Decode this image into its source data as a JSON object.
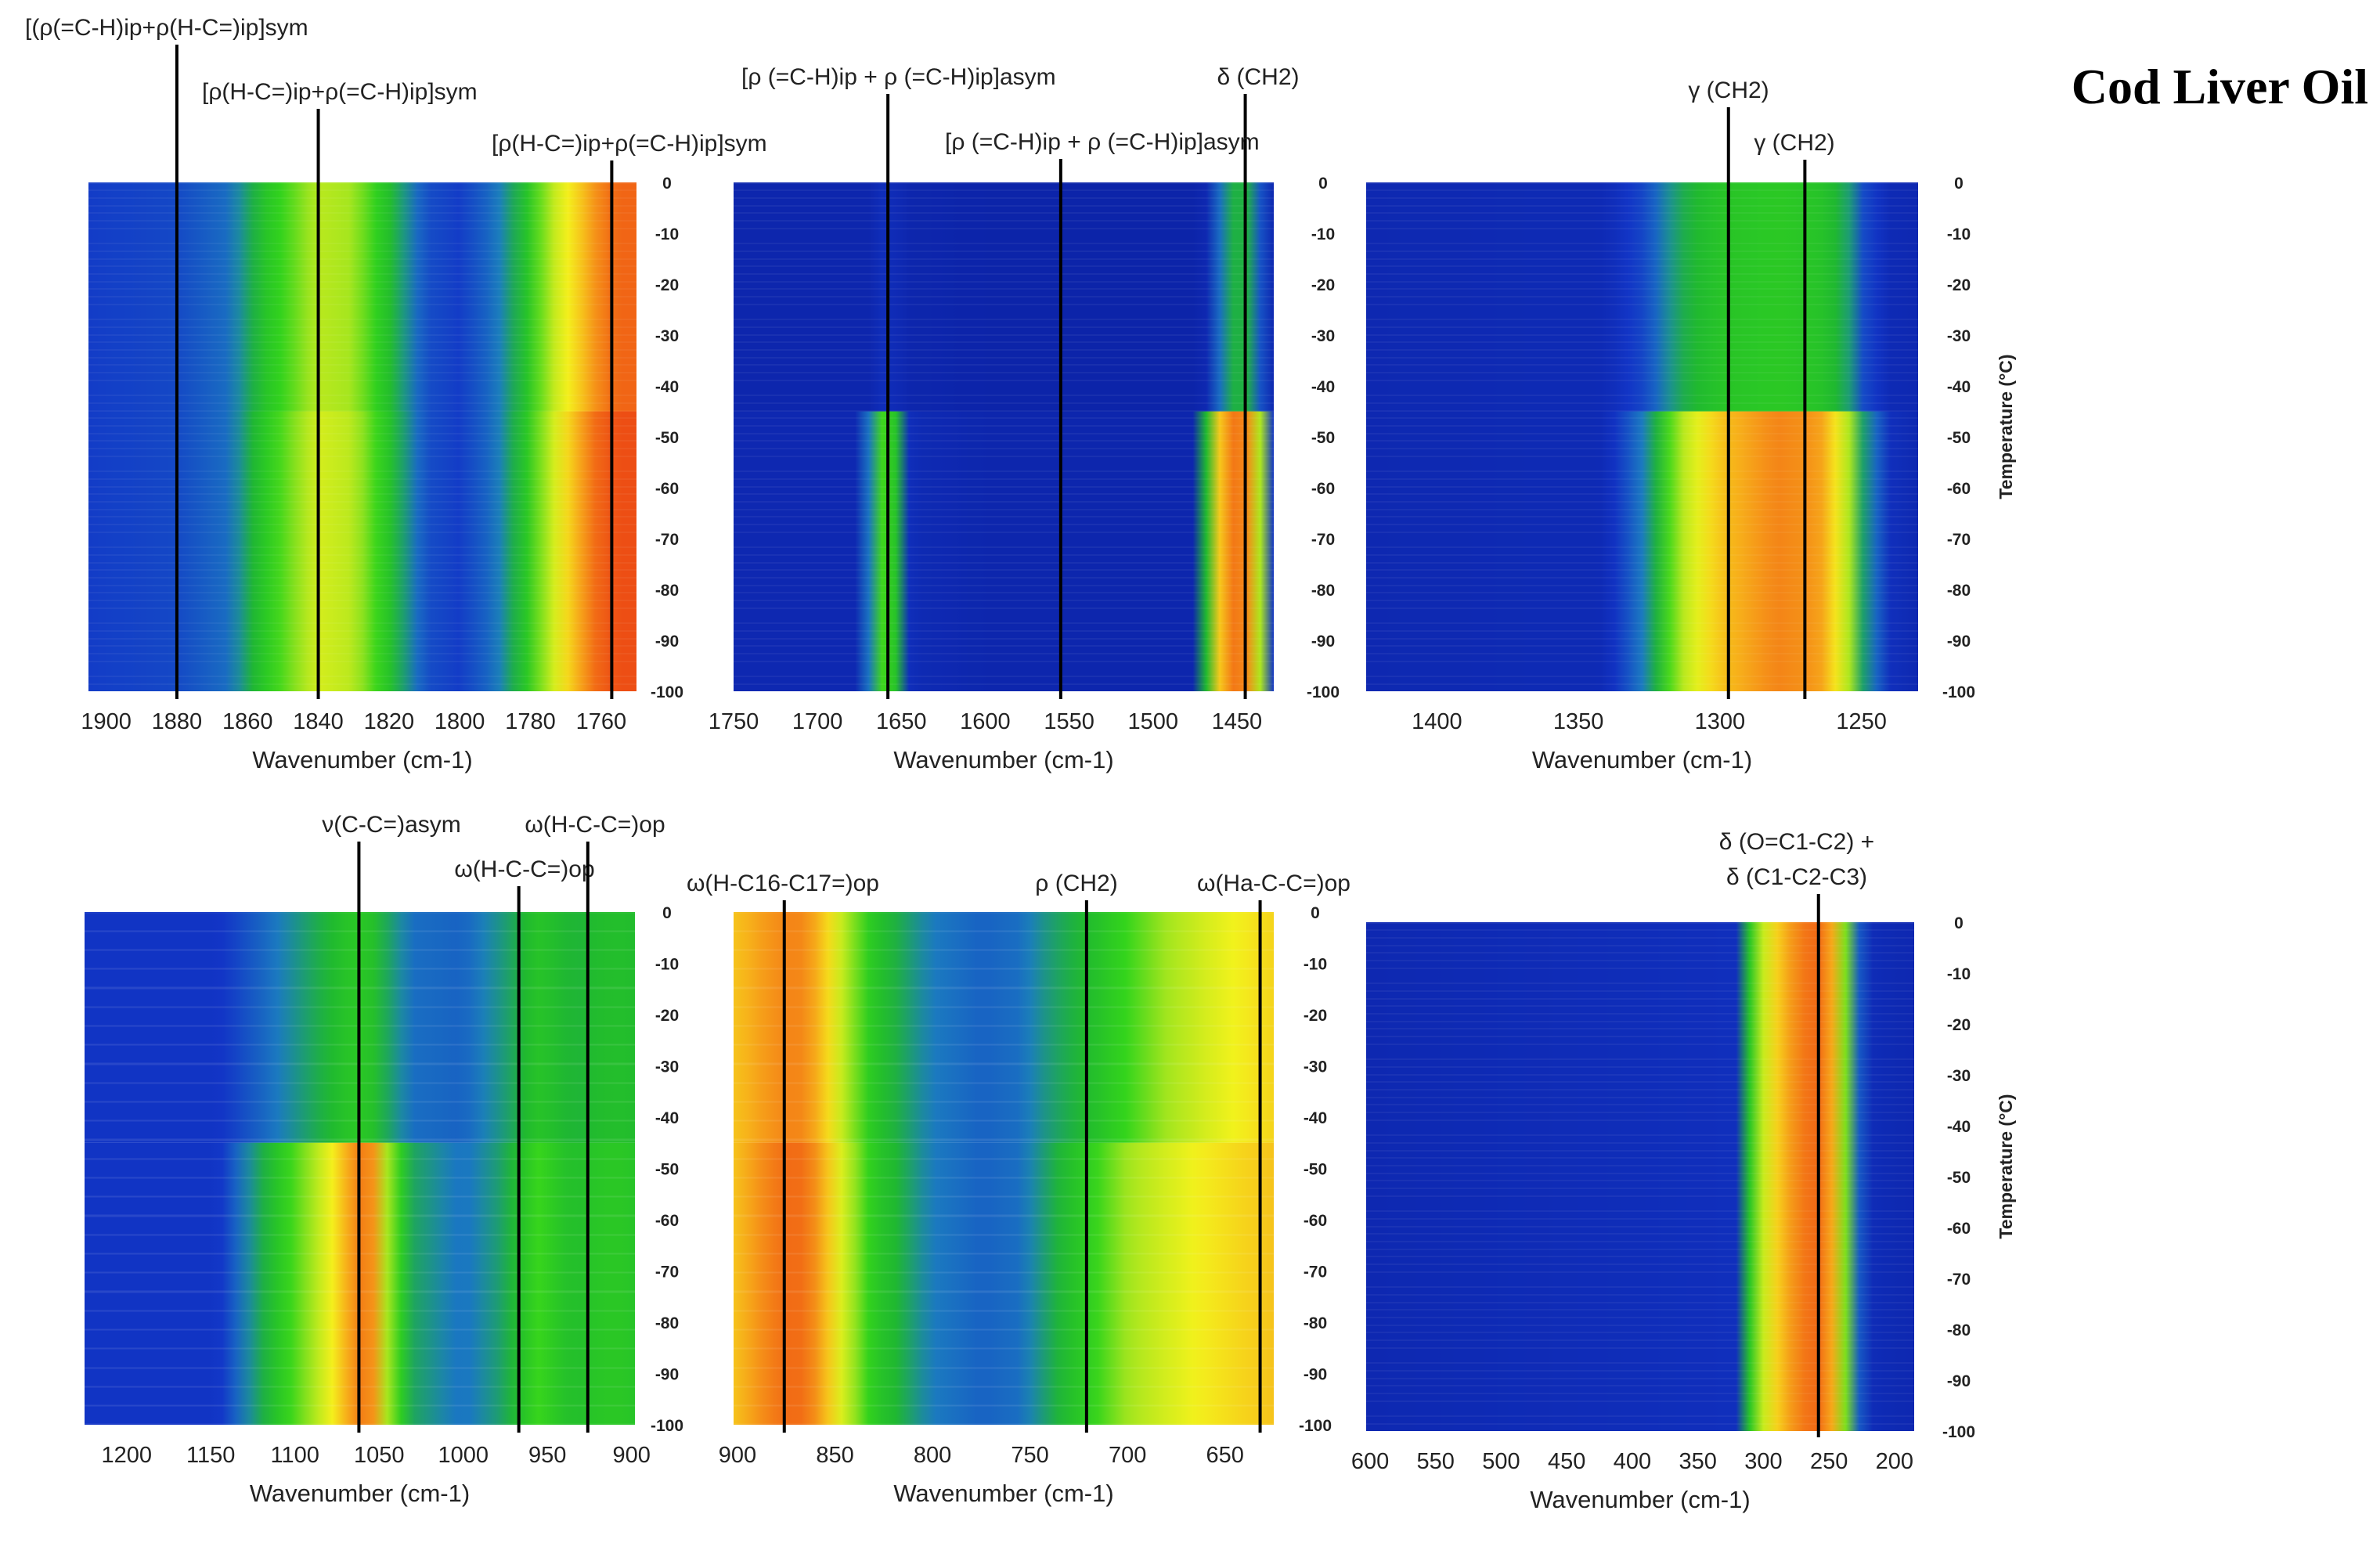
{
  "chart_data": {
    "title": "Cod Liver Oil",
    "type": "heatmap",
    "colormap": [
      "#0a1d9e",
      "#1236c8",
      "#1b7cc0",
      "#1fb830",
      "#33d41c",
      "#a8e61e",
      "#f4f21c",
      "#f7b31a",
      "#f26a15",
      "#e93714"
    ],
    "panels": [
      {
        "id": "p1",
        "xlabel": "Wavenumber (cm-1)",
        "xlim": [
          1905,
          1750
        ],
        "xticks": [
          "1900",
          "1880",
          "1860",
          "1840",
          "1820",
          "1800",
          "1780",
          "1760"
        ],
        "ylabel": "",
        "ylim": [
          0,
          -100
        ],
        "yticks": [
          "0",
          "-10",
          "-20",
          "-30",
          "-40",
          "-50",
          "-60",
          "-70",
          "-80",
          "-90",
          "-100"
        ],
        "profile": {
          "wavenumbers": [
            1905,
            1880,
            1865,
            1855,
            1840,
            1830,
            1820,
            1810,
            1800,
            1790,
            1780,
            1775,
            1770,
            1765,
            1760,
            1755,
            1750
          ],
          "intensity_low_T": [
            0.12,
            0.14,
            0.2,
            0.4,
            0.62,
            0.58,
            0.38,
            0.15,
            0.12,
            0.2,
            0.42,
            0.58,
            0.7,
            0.82,
            0.92,
            0.95,
            0.95
          ],
          "intensity_high_T": [
            0.12,
            0.14,
            0.2,
            0.38,
            0.58,
            0.55,
            0.36,
            0.15,
            0.12,
            0.2,
            0.4,
            0.56,
            0.66,
            0.76,
            0.86,
            0.9,
            0.9
          ],
          "transition_T": -45
        },
        "annotations": [
          {
            "label": "[(ρ(=C-H)ip+ρ(H-C=)ip]sym",
            "x": 1880
          },
          {
            "label": "[ρ(H-C=)ip+ρ(=C-H)ip]sym",
            "x": 1840
          },
          {
            "label": "[ρ(H-C=)ip+ρ(=C-H)ip]sym",
            "x": 1757
          }
        ]
      },
      {
        "id": "p2",
        "xlabel": "Wavenumber (cm-1)",
        "xlim": [
          1750,
          1428
        ],
        "xticks": [
          "1750",
          "1700",
          "1650",
          "1600",
          "1550",
          "1500",
          "1450"
        ],
        "ylabel": "",
        "ylim": [
          0,
          -100
        ],
        "yticks": [
          "0",
          "-10",
          "-20",
          "-30",
          "-40",
          "-50",
          "-60",
          "-70",
          "-80",
          "-90",
          "-100"
        ],
        "profile": {
          "wavenumbers": [
            1750,
            1675,
            1668,
            1660,
            1652,
            1645,
            1600,
            1475,
            1468,
            1460,
            1450,
            1440,
            1435,
            1428
          ],
          "intensity_low_T": [
            0.05,
            0.05,
            0.25,
            0.5,
            0.35,
            0.06,
            0.04,
            0.04,
            0.35,
            0.75,
            0.9,
            0.8,
            0.5,
            0.1
          ],
          "intensity_high_T": [
            0.04,
            0.04,
            0.04,
            0.08,
            0.06,
            0.04,
            0.03,
            0.03,
            0.05,
            0.2,
            0.35,
            0.3,
            0.12,
            0.05
          ],
          "transition_T": -45
        },
        "annotations": [
          {
            "label": "[ρ (=C-H)ip + ρ (=C-H)ip]asym",
            "x": 1658
          },
          {
            "label": "δ (CH2)",
            "x": 1445
          },
          {
            "label": "[ρ (=C-H)ip + ρ (=C-H)ip]asym",
            "x": 1555
          }
        ]
      },
      {
        "id": "p3",
        "xlabel": "Wavenumber (cm-1)",
        "xlim": [
          1425,
          1230
        ],
        "xticks": [
          "1400",
          "1350",
          "1300",
          "1250"
        ],
        "ylabel": "Temperature (°C)",
        "ylim": [
          0,
          -100
        ],
        "yticks": [
          "0",
          "-10",
          "-20",
          "-30",
          "-40",
          "-50",
          "-60",
          "-70",
          "-80",
          "-90",
          "-100"
        ],
        "profile": {
          "wavenumbers": [
            1425,
            1340,
            1325,
            1315,
            1300,
            1280,
            1265,
            1255,
            1250,
            1240,
            1230
          ],
          "intensity_low_T": [
            0.05,
            0.06,
            0.25,
            0.55,
            0.75,
            0.85,
            0.82,
            0.6,
            0.3,
            0.08,
            0.05
          ],
          "intensity_high_T": [
            0.05,
            0.06,
            0.15,
            0.3,
            0.38,
            0.4,
            0.38,
            0.3,
            0.15,
            0.06,
            0.05
          ],
          "transition_T": -45
        },
        "annotations": [
          {
            "label": "γ (CH2)",
            "x": 1297
          },
          {
            "label": "γ (CH2)",
            "x": 1270
          }
        ]
      },
      {
        "id": "p4",
        "xlabel": "Wavenumber (cm-1)",
        "xlim": [
          1225,
          898
        ],
        "xticks": [
          "1200",
          "1150",
          "1100",
          "1050",
          "1000",
          "950",
          "900"
        ],
        "ylabel": "",
        "ylim": [
          0,
          -100
        ],
        "yticks": [
          "0",
          "-10",
          "-20",
          "-30",
          "-40",
          "-50",
          "-60",
          "-70",
          "-80",
          "-90",
          "-100"
        ],
        "profile": {
          "wavenumbers": [
            1225,
            1145,
            1115,
            1090,
            1075,
            1065,
            1055,
            1045,
            1030,
            1000,
            975,
            955,
            935,
            925,
            910,
            898
          ],
          "intensity_low_T": [
            0.1,
            0.1,
            0.35,
            0.55,
            0.7,
            0.85,
            0.88,
            0.55,
            0.3,
            0.2,
            0.3,
            0.45,
            0.35,
            0.38,
            0.4,
            0.38
          ],
          "intensity_high_T": [
            0.1,
            0.1,
            0.2,
            0.3,
            0.35,
            0.4,
            0.38,
            0.3,
            0.2,
            0.18,
            0.28,
            0.38,
            0.32,
            0.34,
            0.36,
            0.35
          ],
          "transition_T": -45
        },
        "annotations": [
          {
            "label": "ν(C-C=)asym",
            "x": 1062
          },
          {
            "label": "ω(H-C-C=)op",
            "x": 967
          },
          {
            "label": "ω(H-C-C=)op",
            "x": 926
          }
        ]
      },
      {
        "id": "p5",
        "xlabel": "Wavenumber (cm-1)",
        "xlim": [
          902,
          625
        ],
        "xticks": [
          "900",
          "850",
          "800",
          "750",
          "700",
          "650"
        ],
        "ylabel": "",
        "ylim": [
          0,
          -100
        ],
        "yticks": [
          "0",
          "-10",
          "-20",
          "-30",
          "-40",
          "-50",
          "-60",
          "-70",
          "-80",
          "-90",
          "-100"
        ],
        "profile": {
          "wavenumbers": [
            902,
            885,
            870,
            858,
            848,
            830,
            800,
            775,
            755,
            740,
            720,
            700,
            680,
            660,
            640,
            625
          ],
          "intensity_low_T": [
            0.75,
            0.85,
            0.9,
            0.82,
            0.65,
            0.4,
            0.22,
            0.18,
            0.2,
            0.3,
            0.42,
            0.55,
            0.62,
            0.68,
            0.72,
            0.75
          ],
          "intensity_high_T": [
            0.75,
            0.82,
            0.86,
            0.78,
            0.62,
            0.38,
            0.22,
            0.18,
            0.2,
            0.28,
            0.35,
            0.45,
            0.55,
            0.62,
            0.68,
            0.72
          ],
          "transition_T": -45
        },
        "annotations": [
          {
            "label": "ω(H-C16-C17=)op",
            "x": 876
          },
          {
            "label": "ρ (CH2)",
            "x": 721
          },
          {
            "label": "ω(Ha-C-C=)op",
            "x": 632
          }
        ]
      },
      {
        "id": "p6",
        "xlabel": "Wavenumber (cm-1)",
        "xlim": [
          603,
          185
        ],
        "xticks": [
          "600",
          "550",
          "500",
          "450",
          "400",
          "350",
          "300",
          "250",
          "200"
        ],
        "ylabel": "Temperature (°C)",
        "ylim": [
          0,
          -100
        ],
        "yticks": [
          "0",
          "-10",
          "-20",
          "-30",
          "-40",
          "-50",
          "-60",
          "-70",
          "-80",
          "-90",
          "-100"
        ],
        "profile": {
          "wavenumbers": [
            603,
            320,
            310,
            300,
            290,
            275,
            260,
            250,
            240,
            232,
            225,
            215,
            185
          ],
          "intensity_low_T": [
            0.05,
            0.08,
            0.4,
            0.6,
            0.72,
            0.85,
            0.9,
            0.85,
            0.6,
            0.35,
            0.1,
            0.06,
            0.05
          ],
          "intensity_high_T": [
            0.05,
            0.08,
            0.4,
            0.6,
            0.72,
            0.85,
            0.9,
            0.85,
            0.6,
            0.35,
            0.1,
            0.06,
            0.05
          ],
          "transition_T": -45
        },
        "annotations": [
          {
            "label": "δ (O=C1-C2) +",
            "x": 258
          },
          {
            "label": "δ (C1-C2-C3)",
            "x": 258
          }
        ]
      }
    ]
  }
}
